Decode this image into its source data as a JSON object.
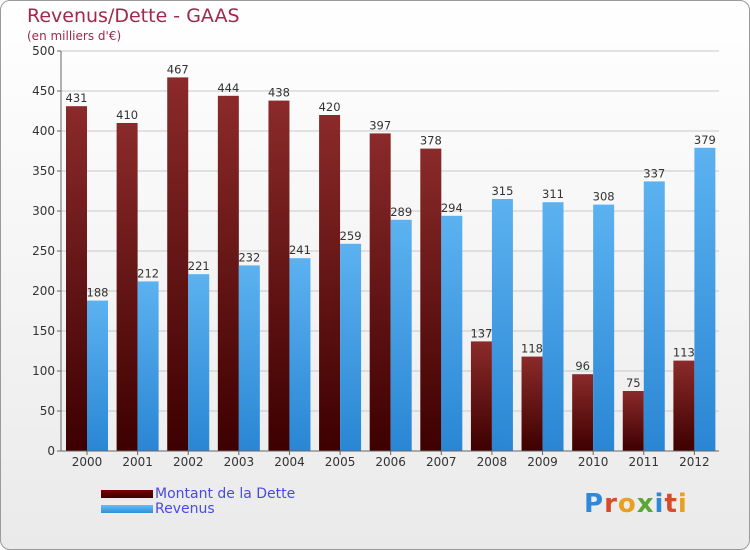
{
  "header": {
    "title": "Revenus/Dette - GAAS",
    "subtitle": "(en milliers d'€)"
  },
  "legend": {
    "debt_label": "Montant de la Dette",
    "revenue_label": "Revenus"
  },
  "brand": {
    "logo_text": "Proxiti"
  },
  "colors": {
    "debt_top": "#8b2a2a",
    "debt_bottom": "#3d0000",
    "revenue_top": "#5cb2f0",
    "revenue_bottom": "#2a86d4",
    "title": "#a0284b",
    "grid": "#c8c8c8"
  },
  "chart_data": {
    "type": "bar",
    "title": "Revenus/Dette - GAAS",
    "subtitle": "(en milliers d'€)",
    "categories": [
      "2000",
      "2001",
      "2002",
      "2003",
      "2004",
      "2005",
      "2006",
      "2007",
      "2008",
      "2009",
      "2010",
      "2011",
      "2012"
    ],
    "series": [
      {
        "name": "Montant de la Dette",
        "values": [
          431,
          410,
          467,
          444,
          438,
          420,
          397,
          378,
          137,
          118,
          96,
          75,
          113
        ]
      },
      {
        "name": "Revenus",
        "values": [
          188,
          212,
          221,
          232,
          241,
          259,
          289,
          294,
          315,
          311,
          308,
          337,
          379
        ]
      }
    ],
    "ylim": [
      0,
      500
    ],
    "yticks": [
      0,
      50,
      100,
      150,
      200,
      250,
      300,
      350,
      400,
      450,
      500
    ],
    "grid": true,
    "legend_position": "bottom-left"
  }
}
